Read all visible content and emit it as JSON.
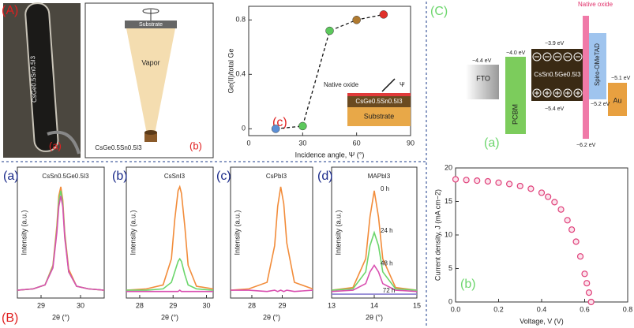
{
  "labels": {
    "A": "(A)",
    "B": "(B)",
    "C": "(C)"
  },
  "photo": {
    "label": "(a)",
    "text": "CsGe0.5Sn0.5I3"
  },
  "vapor_diagram": {
    "label": "(b)",
    "substrate": "Substrate",
    "vapor": "Vapor",
    "source": "CsGe0.5Sn0.5I3"
  },
  "energy_diagram": {
    "label": "(a)",
    "layers": [
      "FTO",
      "PCBM",
      "CsSn0.5Ge0.5I3",
      "Spiro-OMeTAD",
      "Au"
    ],
    "native_oxide": "Native oxide",
    "levels": [
      "−4.4 eV",
      "−4.0 eV",
      "−3.9 eV",
      "−5.4 eV",
      "−6.2 eV",
      "−5.1 eV",
      "−5.2 eV"
    ]
  },
  "chart_data": [
    {
      "type": "scatter",
      "panel_label": "(c)",
      "x": [
        15,
        30,
        45,
        60,
        75
      ],
      "values": [
        0,
        0.02,
        0.72,
        0.8,
        0.84
      ],
      "point_colors": [
        "#5b8fd6",
        "#5cc85c",
        "#5cc85c",
        "#b07a30",
        "#e0302a"
      ],
      "connect": "dashed",
      "xlim": [
        0,
        90
      ],
      "xticks": [
        0,
        30,
        60,
        90
      ],
      "ylim": [
        -0.05,
        0.9
      ],
      "yticks": [
        0,
        0.4,
        0.8
      ],
      "xlabel": "Incidence angle, Ψ (°)",
      "ylabel": "Ge(II)/total Ge",
      "annotations": [
        "Native oxide",
        "CsGe0.5Sn0.5I3",
        "Substrate",
        "Ψ"
      ]
    },
    {
      "type": "line",
      "panel_label": "(a)",
      "title": "CsSn0.5Ge0.5I3",
      "x": [
        28.4,
        28.8,
        29.1,
        29.3,
        29.4,
        29.45,
        29.5,
        29.55,
        29.6,
        29.7,
        29.9,
        30.2,
        30.6
      ],
      "series": [
        {
          "color": "#f28c3a",
          "values": [
            0.06,
            0.07,
            0.1,
            0.25,
            0.55,
            0.78,
            0.85,
            0.75,
            0.5,
            0.22,
            0.09,
            0.07,
            0.06
          ]
        },
        {
          "color": "#6cd66c",
          "values": [
            0.06,
            0.07,
            0.1,
            0.24,
            0.52,
            0.74,
            0.82,
            0.72,
            0.48,
            0.2,
            0.09,
            0.07,
            0.06
          ]
        },
        {
          "color": "#d94fb0",
          "values": [
            0.06,
            0.07,
            0.1,
            0.23,
            0.5,
            0.7,
            0.78,
            0.7,
            0.46,
            0.2,
            0.09,
            0.07,
            0.06
          ]
        }
      ],
      "xlim": [
        28.4,
        30.6
      ],
      "xticks": [
        29,
        30
      ],
      "ylim": [
        0,
        1
      ],
      "xlabel": "2θ (°)",
      "ylabel": "Intensity (a.u.)"
    },
    {
      "type": "line",
      "panel_label": "(b)",
      "title": "CsSnI3",
      "x": [
        27.6,
        28.2,
        28.7,
        28.95,
        29.05,
        29.15,
        29.2,
        29.25,
        29.35,
        29.45,
        29.7,
        30.2
      ],
      "series": [
        {
          "color": "#f28c3a",
          "values": [
            0.06,
            0.07,
            0.1,
            0.3,
            0.6,
            0.82,
            0.85,
            0.8,
            0.55,
            0.25,
            0.09,
            0.07
          ]
        },
        {
          "color": "#6cd66c",
          "values": [
            0.06,
            0.06,
            0.07,
            0.12,
            0.2,
            0.28,
            0.3,
            0.28,
            0.18,
            0.1,
            0.07,
            0.06
          ]
        },
        {
          "color": "#d94fb0",
          "values": [
            0.05,
            0.05,
            0.05,
            0.05,
            0.05,
            0.05,
            0.06,
            0.05,
            0.05,
            0.05,
            0.05,
            0.05
          ]
        }
      ],
      "xlim": [
        27.6,
        30.2
      ],
      "xticks": [
        28,
        29,
        30
      ],
      "ylim": [
        0,
        1
      ],
      "xlabel": "2θ (°)",
      "ylabel": "Intensity (a.u.)"
    },
    {
      "type": "line",
      "panel_label": "(c)",
      "title": "CsPbI3",
      "x": [
        27.3,
        27.9,
        28.5,
        28.75,
        28.85,
        28.95,
        29.05,
        29.15,
        29.4,
        30.0
      ],
      "series": [
        {
          "color": "#f28c3a",
          "values": [
            0.06,
            0.07,
            0.12,
            0.4,
            0.7,
            0.85,
            0.72,
            0.42,
            0.12,
            0.07
          ]
        },
        {
          "color": "#d94fb0",
          "values": [
            0.06,
            0.06,
            0.05,
            0.06,
            0.05,
            0.06,
            0.05,
            0.06,
            0.05,
            0.06
          ]
        }
      ],
      "xlim": [
        27.3,
        30.0
      ],
      "xticks": [
        28,
        29
      ],
      "ylim": [
        0,
        1
      ],
      "xlabel": "2θ (°)",
      "ylabel": "Intensity (a.u.)"
    },
    {
      "type": "line",
      "panel_label": "(d)",
      "title": "MAPbI3",
      "x": [
        13,
        13.5,
        13.8,
        13.9,
        14,
        14.1,
        14.2,
        14.5,
        15
      ],
      "series": [
        {
          "name": "0 h",
          "color": "#f28c3a",
          "values": [
            0.06,
            0.08,
            0.3,
            0.62,
            0.82,
            0.62,
            0.3,
            0.08,
            0.06
          ]
        },
        {
          "name": "24 h",
          "color": "#6cd66c",
          "values": [
            0.06,
            0.07,
            0.2,
            0.4,
            0.5,
            0.4,
            0.2,
            0.07,
            0.06
          ]
        },
        {
          "name": "48 h",
          "color": "#d94fb0",
          "values": [
            0.05,
            0.06,
            0.11,
            0.2,
            0.25,
            0.2,
            0.11,
            0.06,
            0.05
          ]
        },
        {
          "name": "72 h",
          "color": "#8a7fd0",
          "values": [
            0.03,
            0.03,
            0.03,
            0.03,
            0.03,
            0.03,
            0.03,
            0.03,
            0.03
          ]
        }
      ],
      "xlim": [
        13,
        15
      ],
      "xticks": [
        13,
        14,
        15
      ],
      "ylim": [
        0,
        1
      ],
      "xlabel": "2θ (°)",
      "ylabel": "Intensity (a.u.)"
    },
    {
      "type": "scatter",
      "panel_label": "(b)",
      "color": "#e0407a",
      "x": [
        0,
        0.05,
        0.1,
        0.15,
        0.2,
        0.25,
        0.3,
        0.35,
        0.4,
        0.43,
        0.46,
        0.49,
        0.52,
        0.54,
        0.56,
        0.58,
        0.6,
        0.61,
        0.62,
        0.63
      ],
      "values": [
        18.3,
        18.2,
        18.1,
        18.0,
        17.8,
        17.6,
        17.3,
        16.9,
        16.3,
        15.7,
        14.9,
        13.8,
        12.2,
        10.8,
        9.0,
        6.8,
        4.2,
        2.8,
        1.4,
        0.0
      ],
      "xlim": [
        0,
        0.8
      ],
      "xticks": [
        {
          "value": 0,
          "label": "0.0"
        },
        0.2,
        0.4,
        0.6,
        0.8
      ],
      "ylim": [
        0,
        20
      ],
      "yticks": [
        0,
        5,
        10,
        15,
        20
      ],
      "xlabel": "Voltage, V (V)",
      "ylabel": "Current density, J (mA cm−2)"
    }
  ]
}
